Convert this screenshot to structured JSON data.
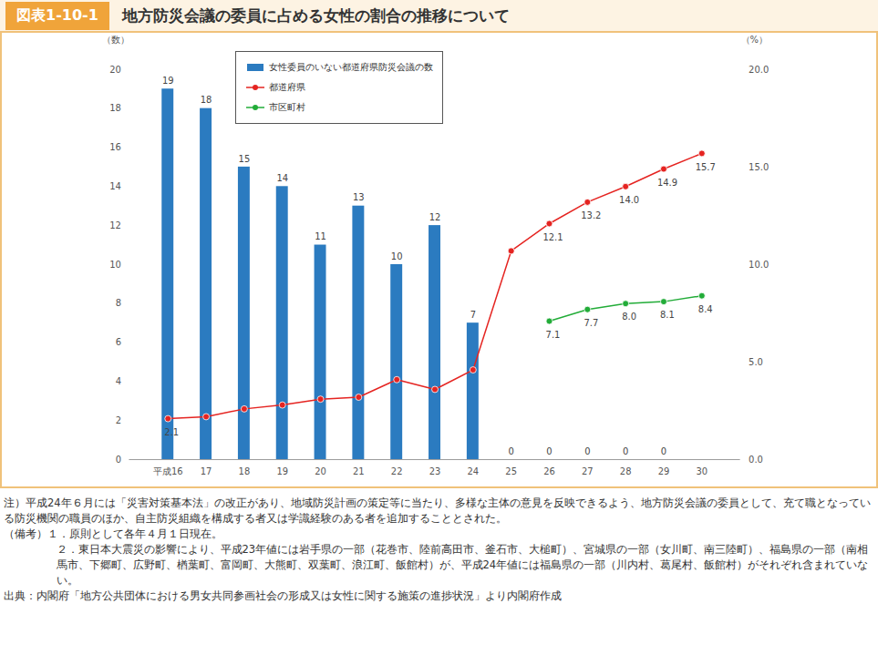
{
  "chart_data": {
    "type": "bar",
    "figure_label": "図表1-10-1",
    "title": "地方防災会議の委員に占める女性の割合の推移について",
    "categories": [
      "平成16",
      "17",
      "18",
      "19",
      "20",
      "21",
      "22",
      "23",
      "24",
      "25",
      "26",
      "27",
      "28",
      "29",
      "30"
    ],
    "series": [
      {
        "name": "女性委員のいない都道府県防災会議の数",
        "type": "bar",
        "color": "#2b7bc0",
        "values": [
          19,
          18,
          15,
          14,
          11,
          13,
          10,
          12,
          7,
          0,
          0,
          0,
          0,
          0,
          null
        ]
      },
      {
        "name": "都道府県",
        "type": "line",
        "axis": "y2",
        "color": "#e52421",
        "marker": "circle",
        "values": [
          2.1,
          2.2,
          2.6,
          2.8,
          3.1,
          3.2,
          4.1,
          3.6,
          4.6,
          10.7,
          12.1,
          13.2,
          14.0,
          14.9,
          15.7
        ],
        "value_labels": [
          "2.1",
          null,
          null,
          null,
          null,
          null,
          null,
          null,
          null,
          null,
          "12.1",
          "13.2",
          "14.0",
          "14.9",
          "15.7"
        ]
      },
      {
        "name": "市区町村",
        "type": "line",
        "axis": "y2",
        "color": "#22ac38",
        "marker": "circle",
        "values": [
          null,
          null,
          null,
          null,
          null,
          null,
          null,
          null,
          null,
          null,
          7.1,
          7.7,
          8.0,
          8.1,
          8.4
        ],
        "value_labels": [
          null,
          null,
          null,
          null,
          null,
          null,
          null,
          null,
          null,
          null,
          "7.1",
          "7.7",
          "8.0",
          "8.1",
          "8.4"
        ]
      }
    ],
    "ylim": [
      0,
      20
    ],
    "yticks": [
      0,
      2,
      4,
      6,
      8,
      10,
      12,
      14,
      16,
      18,
      20
    ],
    "y2lim": [
      0,
      20
    ],
    "y2ticks": [
      {
        "value": 0,
        "label": "0.0"
      },
      {
        "value": 5,
        "label": "5.0"
      },
      {
        "value": 10,
        "label": "10.0"
      },
      {
        "value": 15,
        "label": "15.0"
      },
      {
        "value": 20,
        "label": "20.0"
      }
    ],
    "y_label": "（数）",
    "y2_label": "（%）",
    "data_labels": true,
    "legend": "top",
    "grid": false,
    "annotations": [
      "注）平成24年６月には「災害対策基本法」の改正があり、地域防災計画の策定等に当たり、多様な主体の意見を反映できるよう、地方防災会議の委員として、充て職となっている防災機関の職員のほか、自主防災組織を構成する者又は学識経験のある者を追加することとされた。",
      "（備考）１．原則として各年４月１日現在。",
      "２．東日本大震災の影響により、平成23年値には岩手県の一部（花巻市、陸前高田市、釜石市、大槌町）、宮城県の一部（女川町、南三陸町）、福島県の一部（南相馬市、下郷町、広野町、楢葉町、富岡町、大熊町、双葉町、浪江町、飯館村）が、平成24年値には福島県の一部（川内村、葛尾村、飯館村）がそれぞれ含まれていない。",
      "出典：内閣府「地方公共団体における男女共同参画社会の形成又は女性に関する施策の進捗状況」より内閣府作成"
    ]
  }
}
